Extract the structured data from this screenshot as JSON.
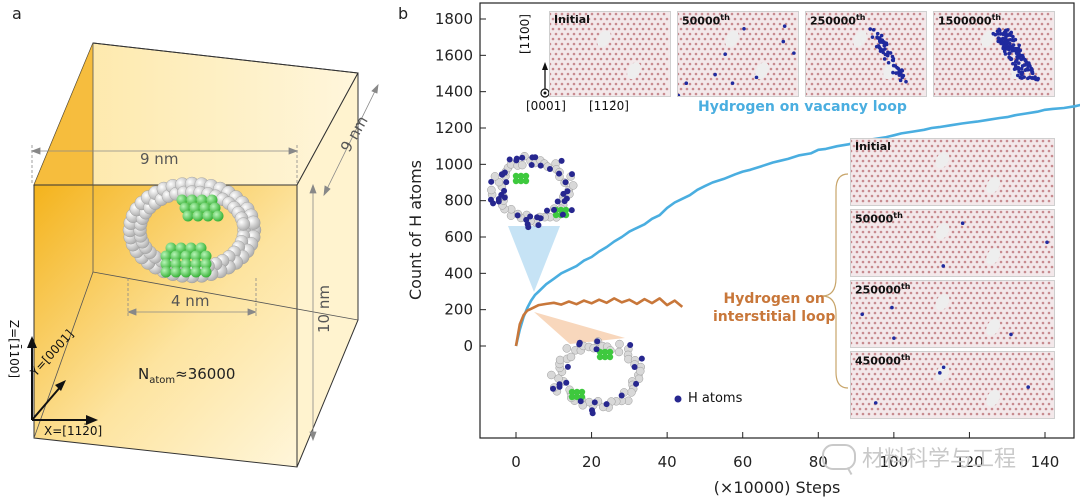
{
  "panel_a": {
    "label": "a",
    "dim_top": "9 nm",
    "dim_right_top": "9 nm",
    "dim_right": "10 nm",
    "dim_loop": "4 nm",
    "natom_prefix": "N",
    "natom_sub": "atom",
    "natom_value": "≈36000",
    "axis_z": "Z=[1̄100]",
    "axis_y": "Y=[0001]",
    "axis_x": "X=[112̄0]"
  },
  "panel_b": {
    "label": "b",
    "top_insets": [
      {
        "label": "Initial",
        "sup": ""
      },
      {
        "label": "50000",
        "sup": "th"
      },
      {
        "label": "250000",
        "sup": "th"
      },
      {
        "label": "1500000",
        "sup": "th"
      }
    ],
    "right_insets": [
      {
        "label": "Initial",
        "sup": ""
      },
      {
        "label": "50000",
        "sup": "th"
      },
      {
        "label": "250000",
        "sup": "th"
      },
      {
        "label": "450000",
        "sup": "th"
      }
    ],
    "orientation": {
      "up": "[11̄00]",
      "out": "[0001]",
      "right": "[112̄0]"
    },
    "vacancy_label": "Hydrogen on vacancy loop",
    "interstitial_label_1": "Hydrogen on",
    "interstitial_label_2": "interstitial loop",
    "legend_h": "H atoms"
  },
  "colors": {
    "vacancy": "#4aaee0",
    "interstitial": "#c8773a",
    "h_atom": "#27278f",
    "green_atom": "#3ec93e",
    "box_gradient_start": "#f4b31c",
    "box_gradient_end": "#fff6da"
  },
  "chart_data": {
    "type": "line",
    "xlabel": "(×10000) Steps",
    "ylabel": "Count of H atoms",
    "xticks": [
      0,
      20,
      40,
      60,
      80,
      100,
      120,
      140
    ],
    "yticks": [
      0,
      200,
      400,
      600,
      800,
      1000,
      1200,
      1400,
      1600,
      1800
    ],
    "xlim": [
      -10,
      150
    ],
    "ylim": [
      -600,
      1900
    ],
    "series": [
      {
        "name": "Hydrogen on vacancy loop",
        "x": [
          0,
          1,
          2,
          3,
          4,
          5,
          6,
          8,
          10,
          12,
          14,
          16,
          18,
          20,
          22,
          24,
          26,
          28,
          30,
          32,
          34,
          36,
          38,
          40,
          42,
          44,
          46,
          48,
          50,
          52,
          55,
          58,
          60,
          62,
          65,
          68,
          70,
          72,
          75,
          78,
          80,
          82,
          85,
          88,
          90,
          92,
          95,
          98,
          100,
          102,
          105,
          108,
          110,
          112,
          115,
          118,
          120,
          122,
          125,
          128,
          130,
          132,
          135,
          138,
          140,
          142,
          145,
          148,
          150
        ],
        "values": [
          0,
          90,
          160,
          210,
          250,
          280,
          300,
          340,
          370,
          400,
          420,
          440,
          470,
          490,
          520,
          545,
          575,
          600,
          630,
          650,
          670,
          700,
          720,
          760,
          790,
          810,
          830,
          860,
          880,
          900,
          920,
          945,
          960,
          970,
          990,
          1010,
          1020,
          1030,
          1050,
          1060,
          1080,
          1085,
          1100,
          1110,
          1120,
          1130,
          1140,
          1150,
          1160,
          1170,
          1180,
          1190,
          1200,
          1205,
          1215,
          1225,
          1230,
          1235,
          1245,
          1255,
          1260,
          1270,
          1280,
          1290,
          1300,
          1305,
          1310,
          1320,
          1330
        ]
      },
      {
        "name": "Hydrogen on interstitial loop",
        "x": [
          0,
          1,
          2,
          3,
          4,
          5,
          6,
          8,
          10,
          12,
          14,
          16,
          18,
          20,
          22,
          24,
          26,
          28,
          30,
          32,
          34,
          36,
          38,
          40,
          42,
          44
        ],
        "values": [
          0,
          120,
          170,
          195,
          205,
          215,
          225,
          232,
          238,
          228,
          245,
          230,
          250,
          235,
          255,
          238,
          262,
          240,
          255,
          232,
          258,
          236,
          262,
          225,
          250,
          215
        ]
      }
    ]
  }
}
